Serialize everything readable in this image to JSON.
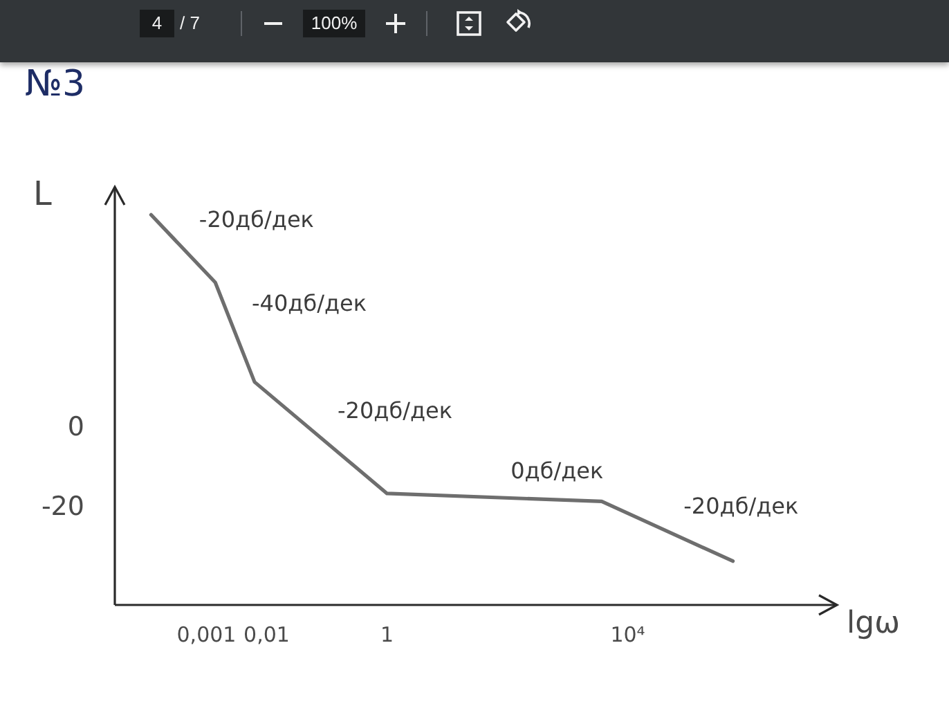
{
  "chart_data": {
    "type": "line",
    "title": "№3",
    "xlabel": "lgω",
    "ylabel": "L",
    "x": [
      0.00012,
      0.0014,
      0.0063,
      1,
      3700,
      560000
    ],
    "values": [
      53,
      36,
      11,
      -17,
      -19,
      -34
    ],
    "color": "#6e6e6e",
    "marker": "none",
    "log": "x",
    "xlim": [
      3e-05,
      30000000
    ],
    "ylim": [
      -45,
      60
    ],
    "xticks": [
      {
        "value": 0.001,
        "label": "0,001"
      },
      {
        "value": 0.01,
        "label": "0,01"
      },
      1,
      {
        "value": 10000,
        "label": "10⁴"
      }
    ],
    "yticks": [
      -20,
      0
    ],
    "annotations": [
      {
        "text": "-20дб/дек",
        "x": 0.0004,
        "y": 45
      },
      {
        "text": "-40дб/дек",
        "x": 0.003,
        "y": 24
      },
      {
        "text": "-20дб/дек",
        "x": 0.08,
        "y": -3
      },
      {
        "text": "0дб/дек",
        "x": 60,
        "y": -18
      },
      {
        "text": "-20дб/дек",
        "x": 45000,
        "y": -27
      },
      "4",
      "/ 7",
      "100%"
    ]
  }
}
